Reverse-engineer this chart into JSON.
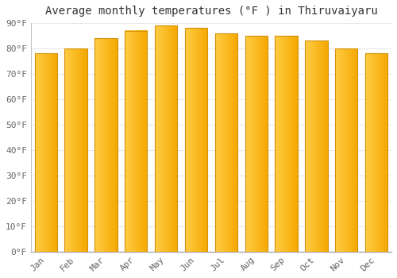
{
  "title": "Average monthly temperatures (°F ) in Thiruvaiyaru",
  "months": [
    "Jan",
    "Feb",
    "Mar",
    "Apr",
    "May",
    "Jun",
    "Jul",
    "Aug",
    "Sep",
    "Oct",
    "Nov",
    "Dec"
  ],
  "values": [
    78,
    80,
    84,
    87,
    89,
    88,
    86,
    85,
    85,
    83,
    80,
    78
  ],
  "bar_color_left": "#FFCD45",
  "bar_color_right": "#F5A800",
  "bar_edge_color": "#D4910A",
  "ylim": [
    0,
    90
  ],
  "yticks": [
    0,
    10,
    20,
    30,
    40,
    50,
    60,
    70,
    80,
    90
  ],
  "ytick_labels": [
    "0°F",
    "10°F",
    "20°F",
    "30°F",
    "40°F",
    "50°F",
    "60°F",
    "70°F",
    "80°F",
    "90°F"
  ],
  "background_color": "#ffffff",
  "plot_bg_color": "#ffffff",
  "grid_color": "#e8e8e8",
  "title_fontsize": 10,
  "tick_fontsize": 8,
  "bar_width": 0.75
}
